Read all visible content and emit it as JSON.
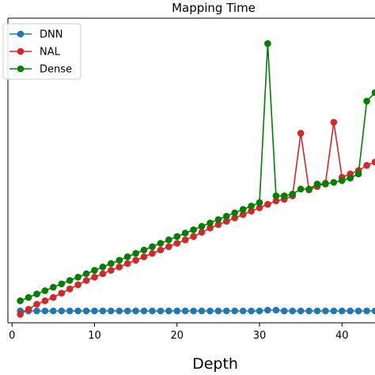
{
  "chart_data": {
    "type": "line",
    "title": "Mapping Time",
    "xlabel": "Depth",
    "ylabel": "",
    "xlim": [
      -0.5,
      44
    ],
    "ylim": [
      0,
      360
    ],
    "xticks": [
      0,
      10,
      20,
      30,
      40
    ],
    "grid": false,
    "legend_position": "top-left",
    "x": [
      1,
      2,
      3,
      4,
      5,
      6,
      7,
      8,
      9,
      10,
      11,
      12,
      13,
      14,
      15,
      16,
      17,
      18,
      19,
      20,
      21,
      22,
      23,
      24,
      25,
      26,
      27,
      28,
      29,
      30,
      31,
      32,
      33,
      34,
      35,
      36,
      37,
      38,
      39,
      40,
      41,
      42,
      43,
      44
    ],
    "series": [
      {
        "name": "DNN",
        "color": "#1f77b4",
        "values": [
          14,
          14,
          14,
          14,
          14,
          14,
          14,
          14,
          14,
          14,
          14,
          14,
          14,
          14,
          14,
          14,
          14,
          14,
          14,
          14,
          14,
          14,
          14,
          14,
          14,
          14,
          14,
          14,
          14,
          14,
          15,
          15,
          14,
          14,
          14,
          14,
          14,
          14,
          14,
          14,
          14,
          14,
          14,
          14
        ]
      },
      {
        "name": "NAL",
        "color": "#d62728",
        "values": [
          10,
          16,
          22,
          26,
          30,
          35,
          40,
          45,
          50,
          54,
          58,
          62,
          66,
          70,
          74,
          78,
          82,
          86,
          90,
          94,
          98,
          102,
          107,
          112,
          116,
          120,
          124,
          128,
          132,
          136,
          140,
          144,
          146,
          150,
          224,
          157,
          161,
          165,
          237,
          172,
          176,
          180,
          186,
          190
        ]
      },
      {
        "name": "Dense",
        "color": "#008000",
        "values": [
          26,
          30,
          34,
          38,
          42,
          46,
          50,
          54,
          58,
          62,
          66,
          70,
          74,
          78,
          82,
          86,
          90,
          94,
          98,
          102,
          106,
          110,
          114,
          118,
          122,
          126,
          130,
          134,
          138,
          142,
          330,
          150,
          150,
          152,
          158,
          158,
          164,
          164,
          166,
          168,
          171,
          176,
          262,
          272
        ]
      }
    ]
  }
}
